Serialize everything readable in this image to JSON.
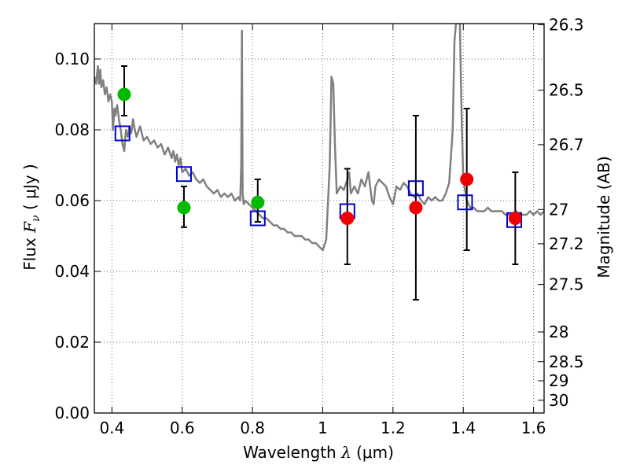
{
  "chart_data": {
    "type": "scatter",
    "title": "",
    "xlabel": {
      "prefix": "Wavelength ",
      "symbol": "λ",
      "units": " (μm)"
    },
    "ylabel": {
      "prefix": "Flux ",
      "symbol": "F",
      "subscript": "ν",
      "units": " ( μJy )"
    },
    "y2label": "Magnitude (AB)",
    "xlim": [
      0.35,
      1.63
    ],
    "ylim": [
      0.0,
      0.11
    ],
    "grid": true,
    "x_ticks": [
      0.4,
      0.6,
      0.8,
      1.0,
      1.2,
      1.4,
      1.6
    ],
    "x_tick_labels": [
      "0.4",
      "0.6",
      "0.8",
      "1",
      "1.2",
      "1.4",
      "1.6"
    ],
    "y_ticks": [
      0.0,
      0.02,
      0.04,
      0.06,
      0.08,
      0.1
    ],
    "y_tick_labels": [
      "0.00",
      "0.02",
      "0.04",
      "0.06",
      "0.08",
      "0.10"
    ],
    "mag_ticks": [
      {
        "flux": 0.1097,
        "label": "26.3"
      },
      {
        "flux": 0.0912,
        "label": "26.5"
      },
      {
        "flux": 0.0758,
        "label": "26.7"
      },
      {
        "flux": 0.0575,
        "label": "27"
      },
      {
        "flux": 0.0478,
        "label": "27.2"
      },
      {
        "flux": 0.0363,
        "label": "27.5"
      },
      {
        "flux": 0.0229,
        "label": "28"
      },
      {
        "flux": 0.0145,
        "label": "28.5"
      },
      {
        "flux": 0.0091,
        "label": "29"
      },
      {
        "flux": 0.0036,
        "label": "30"
      }
    ],
    "series": [
      {
        "kind": "line",
        "color": "#808080",
        "points": [
          [
            0.35,
            0.095
          ],
          [
            0.355,
            0.093
          ],
          [
            0.36,
            0.098
          ],
          [
            0.363,
            0.093
          ],
          [
            0.367,
            0.097
          ],
          [
            0.37,
            0.092
          ],
          [
            0.375,
            0.094
          ],
          [
            0.38,
            0.09
          ],
          [
            0.385,
            0.092
          ],
          [
            0.39,
            0.088
          ],
          [
            0.395,
            0.09
          ],
          [
            0.4,
            0.088
          ],
          [
            0.403,
            0.08
          ],
          [
            0.407,
            0.086
          ],
          [
            0.41,
            0.084
          ],
          [
            0.415,
            0.087
          ],
          [
            0.42,
            0.083
          ],
          [
            0.425,
            0.08
          ],
          [
            0.43,
            0.076
          ],
          [
            0.435,
            0.074
          ],
          [
            0.44,
            0.08
          ],
          [
            0.445,
            0.078
          ],
          [
            0.45,
            0.081
          ],
          [
            0.455,
            0.079
          ],
          [
            0.46,
            0.083
          ],
          [
            0.465,
            0.08
          ],
          [
            0.47,
            0.078
          ],
          [
            0.48,
            0.081
          ],
          [
            0.49,
            0.077
          ],
          [
            0.5,
            0.078
          ],
          [
            0.51,
            0.076
          ],
          [
            0.52,
            0.077
          ],
          [
            0.53,
            0.075
          ],
          [
            0.54,
            0.076
          ],
          [
            0.55,
            0.073
          ],
          [
            0.56,
            0.075
          ],
          [
            0.57,
            0.072
          ],
          [
            0.575,
            0.074
          ],
          [
            0.58,
            0.071
          ],
          [
            0.585,
            0.073
          ],
          [
            0.59,
            0.07
          ],
          [
            0.595,
            0.072
          ],
          [
            0.6,
            0.068
          ],
          [
            0.61,
            0.069
          ],
          [
            0.62,
            0.067
          ],
          [
            0.63,
            0.068
          ],
          [
            0.64,
            0.066
          ],
          [
            0.65,
            0.065
          ],
          [
            0.66,
            0.066
          ],
          [
            0.67,
            0.064
          ],
          [
            0.68,
            0.063
          ],
          [
            0.69,
            0.062
          ],
          [
            0.7,
            0.063
          ],
          [
            0.71,
            0.061
          ],
          [
            0.72,
            0.062
          ],
          [
            0.73,
            0.061
          ],
          [
            0.74,
            0.062
          ],
          [
            0.75,
            0.06
          ],
          [
            0.76,
            0.061
          ],
          [
            0.765,
            0.06
          ],
          [
            0.768,
            0.07
          ],
          [
            0.77,
            0.108
          ],
          [
            0.772,
            0.062
          ],
          [
            0.775,
            0.059
          ],
          [
            0.78,
            0.06
          ],
          [
            0.79,
            0.059
          ],
          [
            0.8,
            0.058
          ],
          [
            0.81,
            0.057
          ],
          [
            0.82,
            0.056
          ],
          [
            0.83,
            0.055
          ],
          [
            0.84,
            0.055
          ],
          [
            0.85,
            0.054
          ],
          [
            0.86,
            0.053
          ],
          [
            0.87,
            0.053
          ],
          [
            0.88,
            0.052
          ],
          [
            0.89,
            0.052
          ],
          [
            0.9,
            0.051
          ],
          [
            0.91,
            0.051
          ],
          [
            0.92,
            0.05
          ],
          [
            0.93,
            0.05
          ],
          [
            0.94,
            0.05
          ],
          [
            0.95,
            0.049
          ],
          [
            0.96,
            0.049
          ],
          [
            0.97,
            0.048
          ],
          [
            0.98,
            0.048
          ],
          [
            0.99,
            0.047
          ],
          [
            1.0,
            0.046
          ],
          [
            1.01,
            0.049
          ],
          [
            1.02,
            0.07
          ],
          [
            1.025,
            0.095
          ],
          [
            1.03,
            0.093
          ],
          [
            1.035,
            0.075
          ],
          [
            1.04,
            0.062
          ],
          [
            1.05,
            0.064
          ],
          [
            1.06,
            0.063
          ],
          [
            1.07,
            0.066
          ],
          [
            1.075,
            0.068
          ],
          [
            1.08,
            0.062
          ],
          [
            1.09,
            0.064
          ],
          [
            1.1,
            0.062
          ],
          [
            1.11,
            0.066
          ],
          [
            1.12,
            0.064
          ],
          [
            1.13,
            0.068
          ],
          [
            1.14,
            0.06
          ],
          [
            1.145,
            0.059
          ],
          [
            1.15,
            0.064
          ],
          [
            1.16,
            0.066
          ],
          [
            1.17,
            0.065
          ],
          [
            1.18,
            0.064
          ],
          [
            1.19,
            0.061
          ],
          [
            1.2,
            0.059
          ],
          [
            1.21,
            0.064
          ],
          [
            1.22,
            0.063
          ],
          [
            1.23,
            0.065
          ],
          [
            1.24,
            0.064
          ],
          [
            1.25,
            0.062
          ],
          [
            1.26,
            0.061
          ],
          [
            1.27,
            0.062
          ],
          [
            1.28,
            0.06
          ],
          [
            1.29,
            0.059
          ],
          [
            1.3,
            0.061
          ],
          [
            1.31,
            0.06
          ],
          [
            1.32,
            0.061
          ],
          [
            1.33,
            0.06
          ],
          [
            1.34,
            0.06
          ],
          [
            1.35,
            0.062
          ],
          [
            1.36,
            0.065
          ],
          [
            1.37,
            0.08
          ],
          [
            1.375,
            0.105
          ],
          [
            1.38,
            0.111
          ],
          [
            1.39,
            0.111
          ],
          [
            1.395,
            0.085
          ],
          [
            1.4,
            0.066
          ],
          [
            1.41,
            0.06
          ],
          [
            1.42,
            0.058
          ],
          [
            1.43,
            0.058
          ],
          [
            1.44,
            0.057
          ],
          [
            1.45,
            0.057
          ],
          [
            1.46,
            0.057
          ],
          [
            1.47,
            0.058
          ],
          [
            1.48,
            0.057
          ],
          [
            1.49,
            0.057
          ],
          [
            1.5,
            0.057
          ],
          [
            1.51,
            0.057
          ],
          [
            1.52,
            0.056
          ],
          [
            1.53,
            0.056
          ],
          [
            1.54,
            0.056
          ],
          [
            1.55,
            0.057
          ],
          [
            1.56,
            0.056
          ],
          [
            1.57,
            0.056
          ],
          [
            1.58,
            0.056
          ],
          [
            1.59,
            0.057
          ],
          [
            1.6,
            0.056
          ],
          [
            1.61,
            0.057
          ],
          [
            1.62,
            0.056
          ],
          [
            1.63,
            0.057
          ]
        ]
      },
      {
        "kind": "markers",
        "shape": "open-square",
        "color": "#0000cc",
        "points": [
          {
            "x": 0.43,
            "y": 0.079
          },
          {
            "x": 0.605,
            "y": 0.0675
          },
          {
            "x": 0.815,
            "y": 0.055
          },
          {
            "x": 1.07,
            "y": 0.057
          },
          {
            "x": 1.265,
            "y": 0.0635
          },
          {
            "x": 1.405,
            "y": 0.0595
          },
          {
            "x": 1.545,
            "y": 0.0545
          }
        ]
      },
      {
        "kind": "markers",
        "shape": "filled-circle",
        "color": "#00bb00",
        "points": [
          {
            "x": 0.435,
            "y": 0.09,
            "yerr_low": 0.084,
            "yerr_high": 0.098
          },
          {
            "x": 0.605,
            "y": 0.058,
            "yerr_low": 0.0525,
            "yerr_high": 0.064
          },
          {
            "x": 0.815,
            "y": 0.0595,
            "yerr_low": 0.054,
            "yerr_high": 0.066
          }
        ]
      },
      {
        "kind": "markers",
        "shape": "filled-circle",
        "color": "#ee0000",
        "points": [
          {
            "x": 1.07,
            "y": 0.055,
            "yerr_low": 0.042,
            "yerr_high": 0.069
          },
          {
            "x": 1.265,
            "y": 0.058,
            "yerr_low": 0.032,
            "yerr_high": 0.084
          },
          {
            "x": 1.41,
            "y": 0.066,
            "yerr_low": 0.046,
            "yerr_high": 0.086
          },
          {
            "x": 1.548,
            "y": 0.055,
            "yerr_low": 0.042,
            "yerr_high": 0.068
          }
        ]
      }
    ]
  }
}
